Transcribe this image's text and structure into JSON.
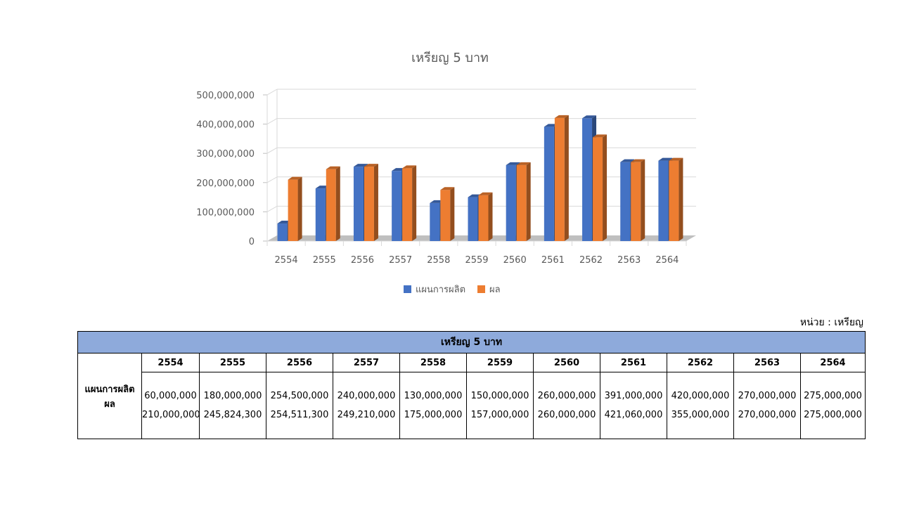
{
  "chart_data": {
    "type": "bar",
    "title": "เหรียญ 5 บาท",
    "categories": [
      "2554",
      "2555",
      "2556",
      "2557",
      "2558",
      "2559",
      "2560",
      "2561",
      "2562",
      "2563",
      "2564"
    ],
    "series": [
      {
        "name": "แผนการผลิต",
        "color": "#4472c4",
        "values": [
          60000000,
          180000000,
          254500000,
          240000000,
          130000000,
          150000000,
          260000000,
          391000000,
          420000000,
          270000000,
          275000000
        ]
      },
      {
        "name": "ผล",
        "color": "#ed7d31",
        "values": [
          210000000,
          245824300,
          254511300,
          249210000,
          175000000,
          157000000,
          260000000,
          421060000,
          355000000,
          270000000,
          275000000
        ]
      }
    ],
    "ylim": [
      0,
      500000000
    ],
    "yticks": [
      "0",
      "100,000,000",
      "200,000,000",
      "300,000,000",
      "400,000,000",
      "500,000,000"
    ],
    "grid": true,
    "legend": "bottom"
  },
  "unit_label": "หน่วย : เหรียญ",
  "table": {
    "title": "เหรียญ 5 บาท",
    "years": [
      "2554",
      "2555",
      "2556",
      "2557",
      "2558",
      "2559",
      "2560",
      "2561",
      "2562",
      "2563",
      "2564"
    ],
    "row_labels": [
      "แผนการผลิต",
      "ผล"
    ],
    "plan": [
      "60,000,000",
      "180,000,000",
      "254,500,000",
      "240,000,000",
      "130,000,000",
      "150,000,000",
      "260,000,000",
      "391,000,000",
      "420,000,000",
      "270,000,000",
      "275,000,000"
    ],
    "result": [
      "210,000,000",
      "245,824,300",
      "254,511,300",
      "249,210,000",
      "175,000,000",
      "157,000,000",
      "260,000,000",
      "421,060,000",
      "355,000,000",
      "270,000,000",
      "275,000,000"
    ]
  }
}
